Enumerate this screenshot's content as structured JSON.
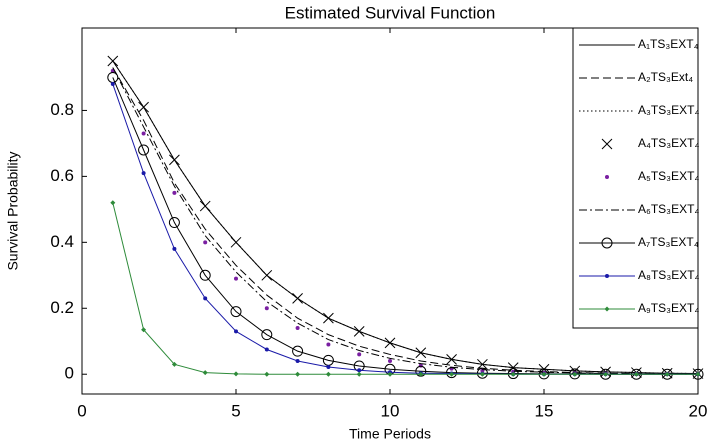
{
  "chart_data": {
    "type": "line",
    "title": "Estimated Survival Function",
    "xlabel": "Time Periods",
    "ylabel": "Survival Probability",
    "x": [
      1,
      2,
      3,
      4,
      5,
      6,
      7,
      8,
      9,
      10,
      11,
      12,
      13,
      14,
      15,
      16,
      17,
      18,
      19,
      20
    ],
    "xlim": [
      0,
      20
    ],
    "xticks": [
      0,
      5,
      10,
      15,
      20
    ],
    "ylim": [
      -0.06,
      1.05
    ],
    "yticks": [
      0,
      0.2,
      0.4,
      0.6,
      0.8
    ],
    "grid": false,
    "legend": "upper right",
    "series": [
      {
        "name": "A₁TS₃EXT₄",
        "color": "#000000",
        "line": "solid",
        "marker": "none",
        "values": [
          0.95,
          0.81,
          0.65,
          0.51,
          0.4,
          0.3,
          0.23,
          0.17,
          0.13,
          0.095,
          0.065,
          0.045,
          0.03,
          0.02,
          0.015,
          0.01,
          0.007,
          0.005,
          0.003,
          0.002
        ]
      },
      {
        "name": "A₂TS₃Ext₄",
        "color": "#000000",
        "line": "dashed",
        "marker": "none",
        "values": [
          0.93,
          0.77,
          0.58,
          0.44,
          0.33,
          0.24,
          0.17,
          0.12,
          0.085,
          0.06,
          0.04,
          0.027,
          0.018,
          0.012,
          0.008,
          0.005,
          0.003,
          0.002,
          0.001,
          0.001
        ]
      },
      {
        "name": "A₃TS₃EXT₄",
        "color": "#000000",
        "line": "dotted",
        "marker": "none",
        "values": [
          0.95,
          0.81,
          0.65,
          0.51,
          0.4,
          0.3,
          0.23,
          0.17,
          0.13,
          0.095,
          0.065,
          0.045,
          0.03,
          0.02,
          0.015,
          0.01,
          0.007,
          0.005,
          0.003,
          0.002
        ]
      },
      {
        "name": "A₄TS₃EXT₄",
        "color": "#000000",
        "line": "none",
        "marker": "x",
        "values": [
          0.95,
          0.81,
          0.65,
          0.51,
          0.4,
          0.3,
          0.23,
          0.17,
          0.13,
          0.095,
          0.065,
          0.045,
          0.03,
          0.02,
          0.015,
          0.01,
          0.007,
          0.005,
          0.003,
          0.002
        ]
      },
      {
        "name": "A₅TS₃EXT₄",
        "color": "#7a1fa2",
        "line": "none",
        "marker": "dot",
        "values": [
          0.92,
          0.73,
          0.55,
          0.4,
          0.29,
          0.2,
          0.14,
          0.09,
          0.06,
          0.04,
          0.026,
          0.017,
          0.011,
          0.007,
          0.004,
          0.003,
          0.002,
          0.001,
          0.001,
          0
        ]
      },
      {
        "name": "A₆TS₃EXT₄",
        "color": "#000000",
        "line": "dashdot",
        "marker": "none",
        "values": [
          0.93,
          0.75,
          0.57,
          0.42,
          0.31,
          0.22,
          0.155,
          0.105,
          0.072,
          0.048,
          0.032,
          0.021,
          0.014,
          0.009,
          0.006,
          0.004,
          0.002,
          0.001,
          0.001,
          0
        ]
      },
      {
        "name": "A₇TS₃EXT₄",
        "color": "#000000",
        "line": "solid",
        "marker": "circle",
        "values": [
          0.9,
          0.68,
          0.46,
          0.3,
          0.19,
          0.12,
          0.07,
          0.042,
          0.025,
          0.015,
          0.009,
          0.005,
          0.003,
          0.002,
          0.001,
          0.001,
          0,
          0,
          0,
          0
        ]
      },
      {
        "name": "A₈TS₃EXT₄",
        "color": "#1a1aa8",
        "line": "solid",
        "marker": "dot",
        "values": [
          0.88,
          0.61,
          0.38,
          0.23,
          0.13,
          0.075,
          0.04,
          0.022,
          0.012,
          0.006,
          0.003,
          0.002,
          0.001,
          0,
          0,
          0,
          0,
          0,
          0,
          0
        ]
      },
      {
        "name": "A₉TS₃EXT₄",
        "color": "#2e8b3a",
        "line": "solid",
        "marker": "diamond",
        "values": [
          0.52,
          0.135,
          0.03,
          0.005,
          0.001,
          0,
          0,
          0,
          0,
          0,
          0,
          0,
          0,
          0,
          0,
          0,
          0,
          0,
          0,
          0
        ]
      }
    ]
  }
}
